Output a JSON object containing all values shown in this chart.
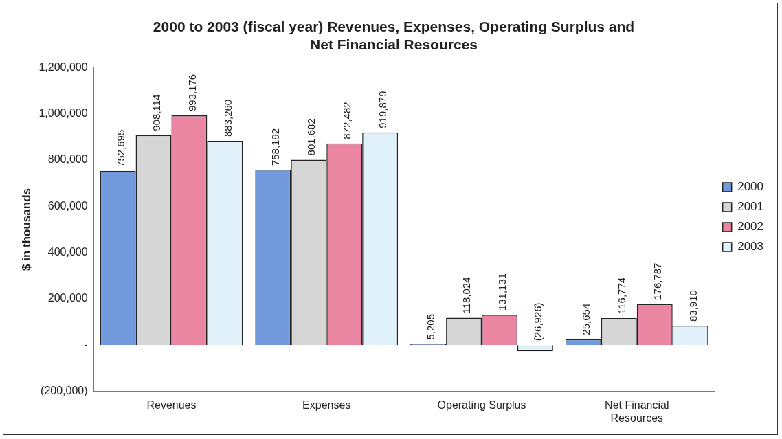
{
  "chart_data": {
    "type": "bar",
    "title": "2000 to 2003 (fiscal year) Revenues, Expenses, Operating Surplus and Net Financial Resources",
    "ylabel": "$ in thousands",
    "categories": [
      "Revenues",
      "Expenses",
      "Operating Surplus",
      "Net Financial Resources"
    ],
    "series": [
      {
        "name": "2000",
        "color": "#7199dc",
        "values": [
          752695,
          758192,
          5205,
          25654
        ],
        "value_labels": [
          "752,695",
          "758,192",
          "5,205",
          "25,654"
        ]
      },
      {
        "name": "2001",
        "color": "#d6d6d6",
        "values": [
          908114,
          801682,
          118024,
          116774
        ],
        "value_labels": [
          "908,114",
          "801,682",
          "118,024",
          "116,774"
        ]
      },
      {
        "name": "2002",
        "color": "#ea85a2",
        "values": [
          993176,
          872482,
          131131,
          176787
        ],
        "value_labels": [
          "993,176",
          "872,482",
          "131,131",
          "176,787"
        ]
      },
      {
        "name": "2003",
        "color": "#e0f1fa",
        "values": [
          883260,
          919879,
          -26926,
          83910
        ],
        "value_labels": [
          "883,260",
          "919,879",
          "(26,926)",
          "83,910"
        ]
      }
    ],
    "ylim": [
      -200000,
      1200000
    ],
    "yticks": [
      {
        "value": -200000,
        "label": "(200,000)"
      },
      {
        "value": 0,
        "label": "-"
      },
      {
        "value": 200000,
        "label": "200,000"
      },
      {
        "value": 400000,
        "label": "400,000"
      },
      {
        "value": 600000,
        "label": "600,000"
      },
      {
        "value": 800000,
        "label": "800,000"
      },
      {
        "value": 1000000,
        "label": "1,000,000"
      },
      {
        "value": 1200000,
        "label": "1,200,000"
      }
    ],
    "grid": false,
    "legend": "right"
  }
}
